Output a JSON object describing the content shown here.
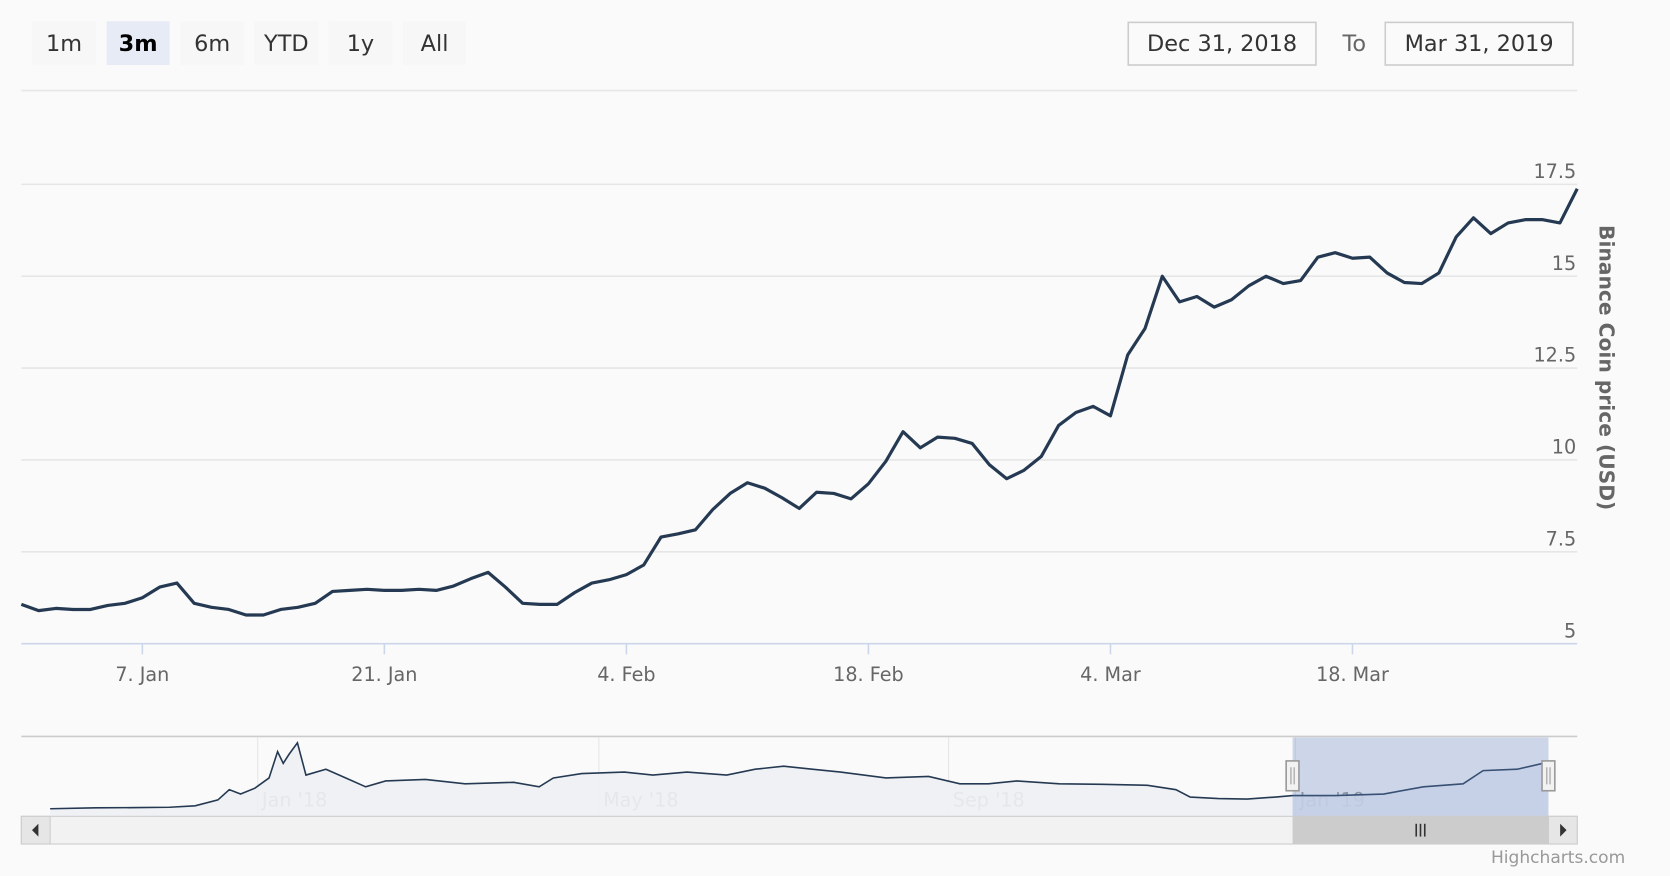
{
  "range_selector": {
    "buttons": [
      {
        "label": "1m",
        "selected": false
      },
      {
        "label": "3m",
        "selected": true
      },
      {
        "label": "6m",
        "selected": false
      },
      {
        "label": "YTD",
        "selected": false
      },
      {
        "label": "1y",
        "selected": false
      },
      {
        "label": "All",
        "selected": false
      }
    ],
    "from_value": "Dec 31, 2018",
    "to_label": "To",
    "to_value": "Mar 31, 2019"
  },
  "credits": "Highcharts.com",
  "colors": {
    "line": "#253a52",
    "selected_button": "#e6ebf5",
    "navigator_mask": "#6685c2"
  },
  "chart_data": {
    "type": "line",
    "title": "",
    "xlabel": "",
    "ylabel": "Binance Coin price (USD)",
    "x_start": "2018-12-31",
    "x_end": "2019-03-31",
    "ylim": [
      5,
      17.5
    ],
    "yticks": [
      5,
      7.5,
      10,
      12.5,
      15,
      17.5
    ],
    "ytick_labels": [
      "5",
      "7.5",
      "10",
      "12.5",
      "15",
      "17.5"
    ],
    "xticks": [
      {
        "date": "2019-01-07",
        "label": "7. Jan"
      },
      {
        "date": "2019-01-21",
        "label": "21. Jan"
      },
      {
        "date": "2019-02-04",
        "label": "4. Feb"
      },
      {
        "date": "2019-02-18",
        "label": "18. Feb"
      },
      {
        "date": "2019-03-04",
        "label": "4. Mar"
      },
      {
        "date": "2019-03-18",
        "label": "18. Mar"
      }
    ],
    "grid": true,
    "series": [
      {
        "name": "Binance Coin price (USD)",
        "interval": "daily",
        "values": [
          6.07,
          5.9,
          5.96,
          5.93,
          5.93,
          6.04,
          6.1,
          6.25,
          6.54,
          6.65,
          6.1,
          5.99,
          5.93,
          5.78,
          5.78,
          5.93,
          5.99,
          6.1,
          6.42,
          6.45,
          6.48,
          6.45,
          6.45,
          6.48,
          6.45,
          6.57,
          6.77,
          6.94,
          6.54,
          6.1,
          6.07,
          6.07,
          6.39,
          6.65,
          6.74,
          6.88,
          7.14,
          7.9,
          7.99,
          8.1,
          8.65,
          9.09,
          9.38,
          9.23,
          8.97,
          8.68,
          9.12,
          9.09,
          8.94,
          9.35,
          9.96,
          10.77,
          10.33,
          10.62,
          10.59,
          10.45,
          9.87,
          9.49,
          9.72,
          10.1,
          10.94,
          11.29,
          11.46,
          11.2,
          12.86,
          13.58,
          15.0,
          14.3,
          14.45,
          14.16,
          14.36,
          14.74,
          15.0,
          14.8,
          14.88,
          15.52,
          15.64,
          15.49,
          15.52,
          15.09,
          14.83,
          14.8,
          15.09,
          16.07,
          16.59,
          16.16,
          16.45,
          16.54,
          16.54,
          16.45,
          17.38
        ]
      }
    ],
    "navigator": {
      "labels": [
        {
          "date": "2018-01-01",
          "label": "Jan '18"
        },
        {
          "date": "2018-05-01",
          "label": "May '18"
        },
        {
          "date": "2018-09-01",
          "label": "Sep '18"
        },
        {
          "date": "2019-01-01",
          "label": "Jan '19"
        }
      ],
      "selected_range": [
        "2018-12-31",
        "2019-03-31"
      ],
      "series": [
        [
          "2017-10-20",
          1.5
        ],
        [
          "2017-11-05",
          1.8
        ],
        [
          "2017-11-20",
          1.9
        ],
        [
          "2017-12-01",
          2.0
        ],
        [
          "2017-12-10",
          2.5
        ],
        [
          "2017-12-18",
          4.5
        ],
        [
          "2017-12-22",
          8
        ],
        [
          "2017-12-26",
          6.5
        ],
        [
          "2017-12-31",
          8.5
        ],
        [
          "2018-01-05",
          12
        ],
        [
          "2018-01-08",
          21
        ],
        [
          "2018-01-10",
          17
        ],
        [
          "2018-01-12",
          20
        ],
        [
          "2018-01-15",
          24
        ],
        [
          "2018-01-18",
          13
        ],
        [
          "2018-01-25",
          15
        ],
        [
          "2018-02-01",
          12
        ],
        [
          "2018-02-08",
          9
        ],
        [
          "2018-02-15",
          11
        ],
        [
          "2018-03-01",
          11.5
        ],
        [
          "2018-03-15",
          10
        ],
        [
          "2018-04-01",
          10.5
        ],
        [
          "2018-04-10",
          9
        ],
        [
          "2018-04-15",
          12
        ],
        [
          "2018-04-25",
          13.5
        ],
        [
          "2018-05-10",
          14
        ],
        [
          "2018-05-20",
          13
        ],
        [
          "2018-06-01",
          14
        ],
        [
          "2018-06-15",
          13
        ],
        [
          "2018-06-25",
          15
        ],
        [
          "2018-07-05",
          16
        ],
        [
          "2018-07-15",
          15
        ],
        [
          "2018-07-25",
          14
        ],
        [
          "2018-08-10",
          12
        ],
        [
          "2018-08-25",
          12.5
        ],
        [
          "2018-09-05",
          10
        ],
        [
          "2018-09-15",
          10
        ],
        [
          "2018-09-25",
          11
        ],
        [
          "2018-10-10",
          10
        ],
        [
          "2018-10-25",
          9.8
        ],
        [
          "2018-11-10",
          9.5
        ],
        [
          "2018-11-20",
          8
        ],
        [
          "2018-11-25",
          5.5
        ],
        [
          "2018-12-05",
          5
        ],
        [
          "2018-12-15",
          4.8
        ],
        [
          "2018-12-25",
          5.5
        ],
        [
          "2018-12-31",
          6.0
        ],
        [
          "2019-01-15",
          6.0
        ],
        [
          "2019-02-01",
          6.5
        ],
        [
          "2019-02-15",
          9
        ],
        [
          "2019-03-01",
          10
        ],
        [
          "2019-03-08",
          14.5
        ],
        [
          "2019-03-20",
          15
        ],
        [
          "2019-03-31",
          17.4
        ]
      ]
    }
  }
}
